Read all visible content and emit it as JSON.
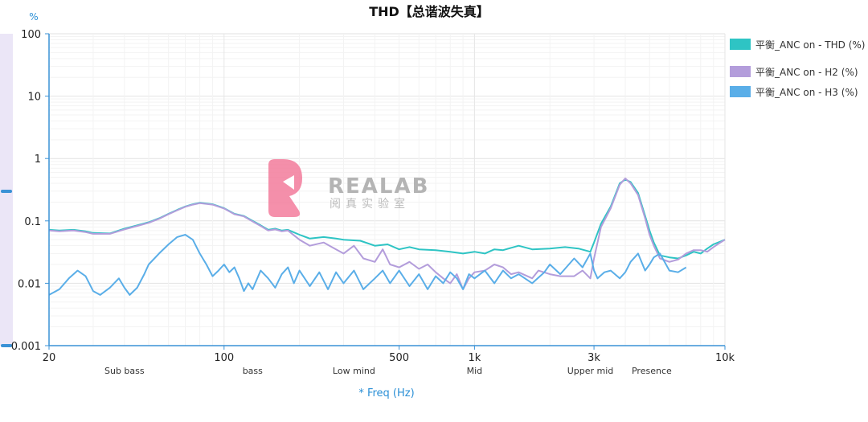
{
  "chart_data": {
    "type": "line",
    "title": "THD【总谐波失真】",
    "ylabel_unit": "%",
    "xlabel": "* Freq (Hz)",
    "xscale": "log",
    "yscale": "log",
    "xlim": [
      20,
      10000
    ],
    "ylim": [
      0.001,
      100
    ],
    "grid": true,
    "legend_position": "right",
    "x_ticks": [
      {
        "value": 20,
        "label": "20"
      },
      {
        "value": 100,
        "label": "100"
      },
      {
        "value": 500,
        "label": "500"
      },
      {
        "value": 1000,
        "label": "1k"
      },
      {
        "value": 3000,
        "label": "3k"
      },
      {
        "value": 10000,
        "label": "10k"
      }
    ],
    "y_ticks": [
      {
        "value": 100,
        "label": "100"
      },
      {
        "value": 10,
        "label": "10"
      },
      {
        "value": 1,
        "label": "1"
      },
      {
        "value": 0.1,
        "label": "0.1"
      },
      {
        "value": 0.01,
        "label": "0.01"
      },
      {
        "value": 0.001,
        "label": "0.001"
      }
    ],
    "bands": [
      {
        "label": "Sub bass",
        "value": 40
      },
      {
        "label": "bass",
        "value": 130
      },
      {
        "label": "Low mind",
        "value": 330
      },
      {
        "label": "Mid",
        "value": 1000
      },
      {
        "label": "Upper mid",
        "value": 2900
      },
      {
        "label": "Presence",
        "value": 5100
      }
    ],
    "series": [
      {
        "name": "平衡_ANC on -  THD (%)",
        "color": "#2ec4c4",
        "x": [
          20,
          22,
          25,
          28,
          30,
          35,
          40,
          45,
          50,
          55,
          60,
          65,
          70,
          75,
          80,
          90,
          100,
          110,
          120,
          130,
          140,
          150,
          160,
          170,
          180,
          200,
          220,
          250,
          280,
          300,
          350,
          400,
          450,
          500,
          550,
          600,
          700,
          800,
          900,
          1000,
          1100,
          1200,
          1300,
          1500,
          1700,
          2000,
          2300,
          2600,
          2900,
          3000,
          3200,
          3500,
          3800,
          4000,
          4200,
          4500,
          4800,
          5000,
          5200,
          5500,
          6000,
          6500,
          7000,
          7500,
          8000,
          8500,
          9000,
          9500,
          10000
        ],
        "y": [
          0.072,
          0.07,
          0.072,
          0.068,
          0.064,
          0.063,
          0.075,
          0.085,
          0.095,
          0.11,
          0.13,
          0.15,
          0.17,
          0.185,
          0.195,
          0.185,
          0.16,
          0.13,
          0.12,
          0.1,
          0.085,
          0.072,
          0.075,
          0.07,
          0.072,
          0.06,
          0.052,
          0.055,
          0.052,
          0.05,
          0.048,
          0.04,
          0.042,
          0.035,
          0.038,
          0.035,
          0.034,
          0.032,
          0.03,
          0.032,
          0.03,
          0.035,
          0.034,
          0.04,
          0.035,
          0.036,
          0.038,
          0.036,
          0.032,
          0.045,
          0.09,
          0.17,
          0.4,
          0.46,
          0.42,
          0.28,
          0.12,
          0.07,
          0.045,
          0.028,
          0.026,
          0.025,
          0.028,
          0.032,
          0.03,
          0.036,
          0.042,
          0.046,
          0.05
        ]
      },
      {
        "name": "平衡_ANC on -  H2 (%)",
        "color": "#b39ddb",
        "x": [
          20,
          22,
          25,
          28,
          30,
          35,
          40,
          45,
          50,
          55,
          60,
          65,
          70,
          75,
          80,
          90,
          100,
          110,
          120,
          130,
          140,
          150,
          160,
          170,
          180,
          200,
          220,
          250,
          280,
          300,
          330,
          360,
          400,
          430,
          460,
          500,
          550,
          600,
          650,
          700,
          750,
          800,
          850,
          900,
          950,
          1000,
          1100,
          1200,
          1300,
          1400,
          1500,
          1700,
          1800,
          2000,
          2200,
          2500,
          2700,
          2900,
          3000,
          3200,
          3500,
          3800,
          4000,
          4200,
          4500,
          4800,
          5000,
          5200,
          5500,
          6000,
          6500,
          7000,
          7500,
          8000,
          8500,
          9000,
          9500,
          10000
        ],
        "y": [
          0.07,
          0.068,
          0.07,
          0.066,
          0.062,
          0.062,
          0.073,
          0.083,
          0.093,
          0.108,
          0.128,
          0.148,
          0.168,
          0.182,
          0.192,
          0.182,
          0.158,
          0.128,
          0.118,
          0.098,
          0.083,
          0.07,
          0.073,
          0.068,
          0.07,
          0.05,
          0.04,
          0.045,
          0.035,
          0.03,
          0.04,
          0.025,
          0.022,
          0.035,
          0.02,
          0.018,
          0.022,
          0.017,
          0.02,
          0.015,
          0.012,
          0.01,
          0.014,
          0.008,
          0.012,
          0.015,
          0.016,
          0.02,
          0.018,
          0.014,
          0.015,
          0.012,
          0.016,
          0.014,
          0.013,
          0.013,
          0.016,
          0.012,
          0.025,
          0.08,
          0.16,
          0.38,
          0.48,
          0.4,
          0.26,
          0.11,
          0.06,
          0.04,
          0.025,
          0.022,
          0.024,
          0.03,
          0.034,
          0.034,
          0.032,
          0.038,
          0.044,
          0.05
        ]
      },
      {
        "name": "平衡_ANC on -  H3 (%)",
        "color": "#5aaee8",
        "x": [
          20,
          22,
          24,
          26,
          28,
          30,
          32,
          35,
          38,
          40,
          42,
          45,
          48,
          50,
          55,
          60,
          65,
          70,
          75,
          80,
          85,
          90,
          95,
          100,
          105,
          110,
          115,
          120,
          125,
          130,
          140,
          150,
          160,
          170,
          180,
          190,
          200,
          220,
          240,
          260,
          280,
          300,
          330,
          360,
          400,
          430,
          460,
          500,
          550,
          600,
          650,
          700,
          750,
          800,
          850,
          900,
          950,
          1000,
          1100,
          1200,
          1300,
          1400,
          1500,
          1700,
          1900,
          2000,
          2200,
          2500,
          2700,
          2900,
          3000,
          3100,
          3300,
          3500,
          3800,
          4000,
          4200,
          4500,
          4800,
          5000,
          5200,
          5500,
          6000,
          6500,
          7000
        ],
        "y": [
          0.0065,
          0.008,
          0.012,
          0.016,
          0.013,
          0.0075,
          0.0065,
          0.0085,
          0.012,
          0.0085,
          0.0065,
          0.0085,
          0.014,
          0.02,
          0.03,
          0.042,
          0.055,
          0.06,
          0.05,
          0.03,
          0.02,
          0.013,
          0.016,
          0.02,
          0.015,
          0.018,
          0.012,
          0.0075,
          0.01,
          0.008,
          0.016,
          0.012,
          0.0085,
          0.014,
          0.018,
          0.01,
          0.016,
          0.009,
          0.015,
          0.008,
          0.015,
          0.01,
          0.016,
          0.008,
          0.012,
          0.016,
          0.01,
          0.016,
          0.009,
          0.014,
          0.008,
          0.013,
          0.01,
          0.015,
          0.012,
          0.008,
          0.014,
          0.012,
          0.016,
          0.01,
          0.016,
          0.012,
          0.014,
          0.01,
          0.015,
          0.02,
          0.014,
          0.025,
          0.018,
          0.03,
          0.016,
          0.012,
          0.015,
          0.016,
          0.012,
          0.015,
          0.022,
          0.03,
          0.016,
          0.02,
          0.026,
          0.03,
          0.016,
          0.015,
          0.018
        ]
      }
    ]
  },
  "watermark": {
    "brand": "REALAB",
    "subtitle": "阅真实验室",
    "logo_color": "#f37c9c"
  }
}
